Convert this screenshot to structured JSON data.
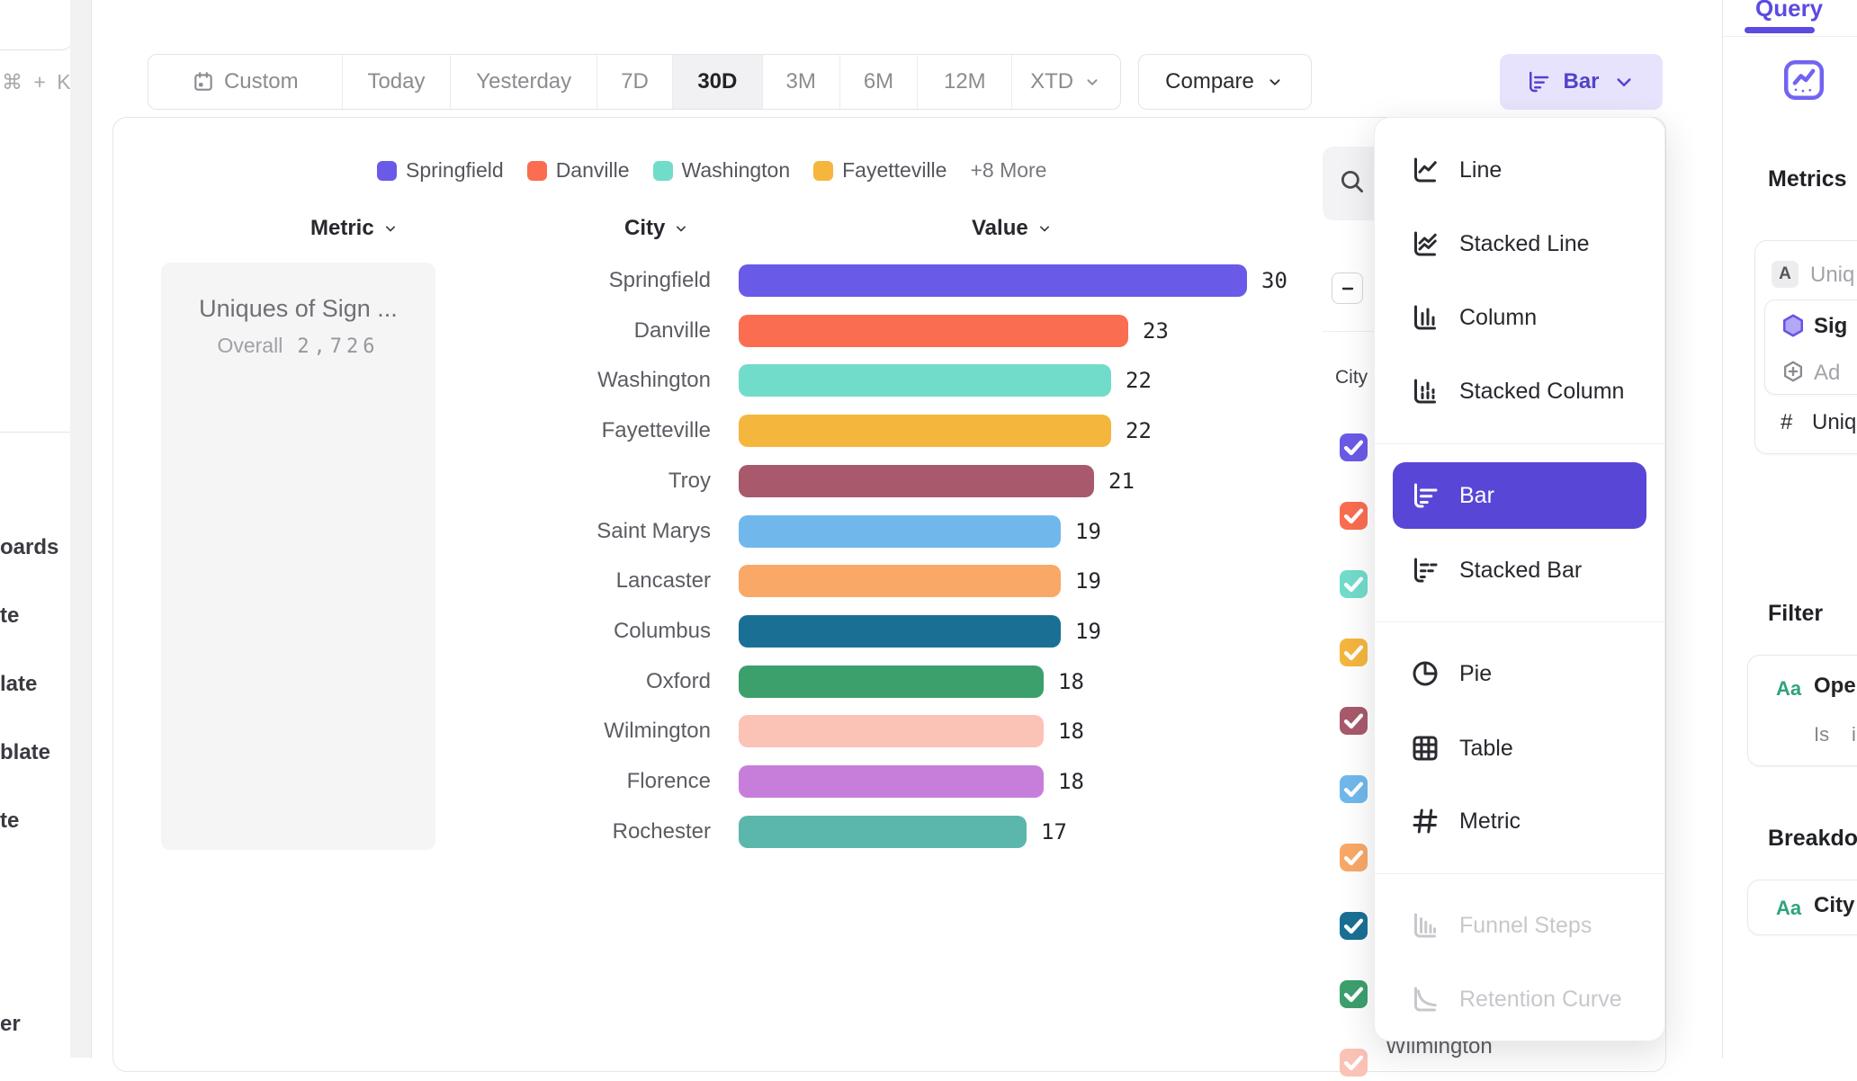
{
  "left_rail": {
    "shortcut_hint": "⌘ + K",
    "nav_fragments": [
      "oards",
      "te",
      "late",
      "blate",
      "te"
    ],
    "bottom_fragment": "er"
  },
  "toolbar": {
    "date_ranges": [
      "Custom",
      "Today",
      "Yesterday",
      "7D",
      "30D",
      "3M",
      "6M",
      "12M",
      "XTD"
    ],
    "selected_range": "30D",
    "compare_label": "Compare",
    "chart_type_label": "Bar"
  },
  "chart": {
    "column_headers": {
      "metric": "Metric",
      "group": "City",
      "value": "Value"
    },
    "metric_card": {
      "title": "Uniques of Sign ...",
      "overall_label": "Overall",
      "overall_value": "2,726"
    },
    "series_panel": {
      "column_label": "City",
      "partial_row_label": "Wilmington"
    }
  },
  "chart_data": {
    "type": "bar",
    "orientation": "horizontal",
    "metric": "Uniques of Sign ...",
    "overall_total": 2726,
    "categories": [
      "Springfield",
      "Danville",
      "Washington",
      "Fayetteville",
      "Troy",
      "Saint Marys",
      "Lancaster",
      "Columbus",
      "Oxford",
      "Wilmington",
      "Florence",
      "Rochester"
    ],
    "values": [
      30,
      23,
      22,
      22,
      21,
      19,
      19,
      19,
      18,
      18,
      18,
      17
    ],
    "colors": [
      "#6A5AE8",
      "#FA6D51",
      "#72DCCB",
      "#F5B63E",
      "#A85A6C",
      "#70B8EC",
      "#F9A867",
      "#1A7094",
      "#3CA06C",
      "#FBC2B6",
      "#C77EDB",
      "#5BB7AB"
    ],
    "legend_visible": [
      "Springfield",
      "Danville",
      "Washington",
      "Fayetteville"
    ],
    "legend_overflow_label": "+8 More",
    "value_range": [
      0,
      30
    ],
    "grid": false,
    "legend_position": "top"
  },
  "chart_type_menu": {
    "items": [
      {
        "label": "Line",
        "icon": "line-chart-icon",
        "selected": false,
        "disabled": false
      },
      {
        "label": "Stacked Line",
        "icon": "stacked-line-chart-icon",
        "selected": false,
        "disabled": false
      },
      {
        "label": "Column",
        "icon": "column-chart-icon",
        "selected": false,
        "disabled": false
      },
      {
        "label": "Stacked Column",
        "icon": "stacked-column-chart-icon",
        "selected": false,
        "disabled": false
      },
      {
        "label": "Bar",
        "icon": "bar-chart-icon",
        "selected": true,
        "disabled": false
      },
      {
        "label": "Stacked Bar",
        "icon": "stacked-bar-chart-icon",
        "selected": false,
        "disabled": false
      },
      {
        "label": "Pie",
        "icon": "pie-chart-icon",
        "selected": false,
        "disabled": false
      },
      {
        "label": "Table",
        "icon": "table-icon",
        "selected": false,
        "disabled": false
      },
      {
        "label": "Metric",
        "icon": "metric-icon",
        "selected": false,
        "disabled": false
      },
      {
        "label": "Funnel Steps",
        "icon": "funnel-steps-icon",
        "selected": false,
        "disabled": true
      },
      {
        "label": "Retention Curve",
        "icon": "retention-curve-icon",
        "selected": false,
        "disabled": true
      }
    ]
  },
  "sidebar": {
    "active_tab": "Query",
    "sections": {
      "metrics": "Metrics",
      "filter": "Filter",
      "breakdown": "Breakdo"
    },
    "metrics_card": {
      "badge": "A",
      "badge_text": "Uniq",
      "event_name": "Sig",
      "add_label": "Ad",
      "measure_prefix": "#",
      "measure_text": "Uniqu"
    },
    "filter_card": {
      "type_badge": "Aa",
      "property": "Ope",
      "operator": "Is",
      "value": "i"
    },
    "breakdown_card": {
      "type_badge": "Aa",
      "property": "City"
    }
  },
  "colors": {
    "accent": "#5B4BE0",
    "menu_selected_bg": "#5847D6",
    "chart_button_bg": "#E7E3FC",
    "badge_green": "#2FA37B"
  }
}
